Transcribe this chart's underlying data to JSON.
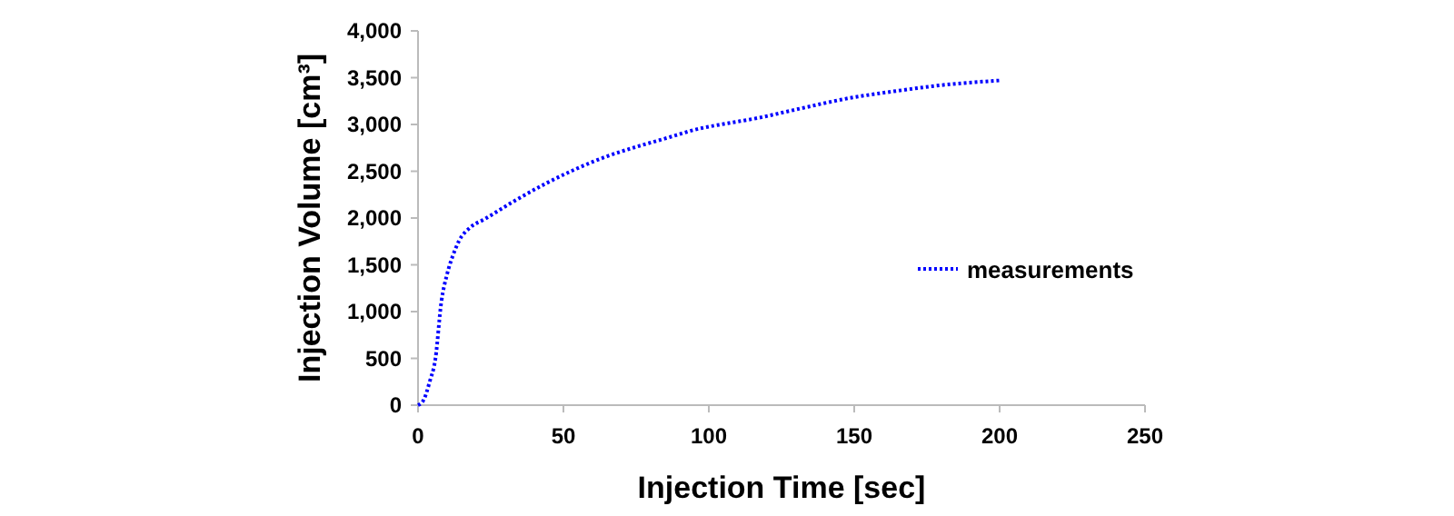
{
  "chart_data": {
    "type": "line",
    "xlabel": "Injection Time [sec]",
    "ylabel": "Injection Volume [cm³]",
    "xlim": [
      0,
      250
    ],
    "xticks": [
      0,
      50,
      100,
      150,
      200,
      250
    ],
    "ylim": [
      0,
      4000
    ],
    "yticks": [
      0,
      {
        "value": 500,
        "label": "500"
      },
      {
        "value": 1000,
        "label": "1,000"
      },
      {
        "value": 1500,
        "label": "1,500"
      },
      {
        "value": 2000,
        "label": "2,000"
      },
      {
        "value": 2500,
        "label": "2,500"
      },
      {
        "value": 3000,
        "label": "3,000"
      },
      {
        "value": 3500,
        "label": "3,500"
      },
      {
        "value": 4000,
        "label": "4,000"
      }
    ],
    "grid": false,
    "legend": "right",
    "line_style": "dotted",
    "series": [
      {
        "name": "measurements",
        "color": "#0000ff",
        "x": [
          0,
          2,
          4,
          6,
          8,
          10,
          12,
          14,
          18,
          23,
          33,
          44,
          54,
          65,
          75,
          85,
          96,
          106,
          117,
          130,
          148,
          165,
          180,
          200
        ],
        "values": [
          0,
          60,
          250,
          500,
          1100,
          1400,
          1600,
          1750,
          1900,
          1990,
          2180,
          2370,
          2520,
          2660,
          2760,
          2850,
          2950,
          3010,
          3070,
          3160,
          3280,
          3360,
          3420,
          3470
        ]
      }
    ]
  }
}
